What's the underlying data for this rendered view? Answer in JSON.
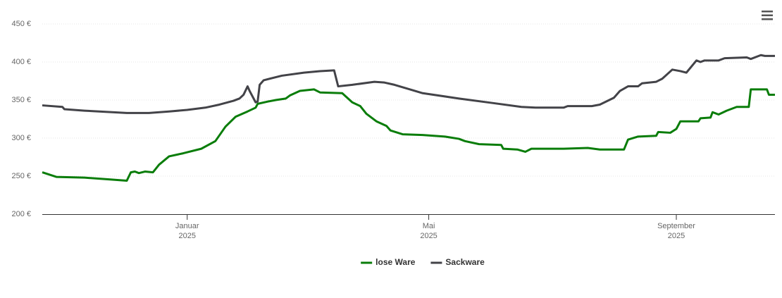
{
  "chart_data": {
    "type": "line",
    "xlim": [
      -72,
      292
    ],
    "xticks": [
      {
        "value": 0,
        "label": [
          "Januar",
          "2025"
        ]
      },
      {
        "value": 120,
        "label": [
          "Mai",
          "2025"
        ]
      },
      {
        "value": 243,
        "label": [
          "September",
          "2025"
        ]
      }
    ],
    "ylim": [
      200,
      450
    ],
    "yticks": [
      {
        "value": 200,
        "label": "200 €"
      },
      {
        "value": 250,
        "label": "250 €"
      },
      {
        "value": 300,
        "label": "300 €"
      },
      {
        "value": 350,
        "label": "350 €"
      },
      {
        "value": 400,
        "label": "400 €"
      },
      {
        "value": 450,
        "label": "450 €"
      }
    ],
    "grid": true,
    "legend": "bottom",
    "series": [
      {
        "name": "lose Ware",
        "color": "#0a7d0a",
        "x": [
          -72,
          -65,
          -51,
          -40,
          -30,
          -28,
          -26,
          -24,
          -21,
          -17,
          -14,
          -9,
          -2,
          7,
          14,
          19,
          24,
          30,
          34,
          35,
          40,
          44,
          49,
          51,
          56,
          63,
          66,
          77,
          82,
          86,
          89,
          94,
          99,
          101,
          107,
          117,
          128,
          135,
          138,
          145,
          156,
          157,
          164,
          168,
          171,
          187,
          199,
          205,
          217,
          219,
          224,
          233,
          234,
          240,
          243,
          245,
          254,
          255,
          260,
          261,
          264,
          268,
          273,
          279,
          280,
          288,
          289,
          292
        ],
        "values": [
          255,
          249,
          248,
          246,
          244,
          255,
          256,
          254,
          256,
          255,
          265,
          276,
          280,
          286,
          296,
          315,
          328,
          335,
          340,
          345,
          348,
          350,
          352,
          356,
          362,
          364,
          360,
          359,
          347,
          342,
          332,
          322,
          316,
          310,
          305,
          304,
          302,
          299,
          296,
          292,
          291,
          286,
          285,
          282,
          286,
          286,
          287,
          285,
          285,
          298,
          302,
          303,
          308,
          307,
          312,
          322,
          322,
          326,
          327,
          334,
          331,
          336,
          341,
          341,
          364,
          364,
          357,
          357
        ]
      },
      {
        "name": "Sackware",
        "color": "#434348",
        "x": [
          -72,
          -62,
          -61,
          -51,
          -30,
          -19,
          -9,
          0,
          9,
          16,
          23,
          26,
          28,
          30,
          31,
          34,
          35,
          36,
          38,
          47,
          58,
          66,
          73,
          75,
          82,
          93,
          98,
          103,
          117,
          135,
          152,
          166,
          173,
          187,
          189,
          201,
          205,
          212,
          215,
          219,
          224,
          226,
          233,
          236,
          241,
          245,
          248,
          253,
          255,
          257,
          264,
          267,
          278,
          280,
          285,
          287,
          292
        ],
        "values": [
          343,
          341,
          338,
          336,
          333,
          333,
          335,
          337,
          340,
          344,
          349,
          352,
          357,
          368,
          362,
          347,
          348,
          370,
          376,
          382,
          386,
          388,
          389,
          368,
          370,
          374,
          373,
          370,
          359,
          352,
          346,
          341,
          340,
          340,
          342,
          342,
          344,
          353,
          362,
          368,
          368,
          372,
          374,
          378,
          390,
          388,
          386,
          402,
          400,
          402,
          402,
          405,
          406,
          404,
          409,
          408,
          408
        ]
      }
    ]
  }
}
